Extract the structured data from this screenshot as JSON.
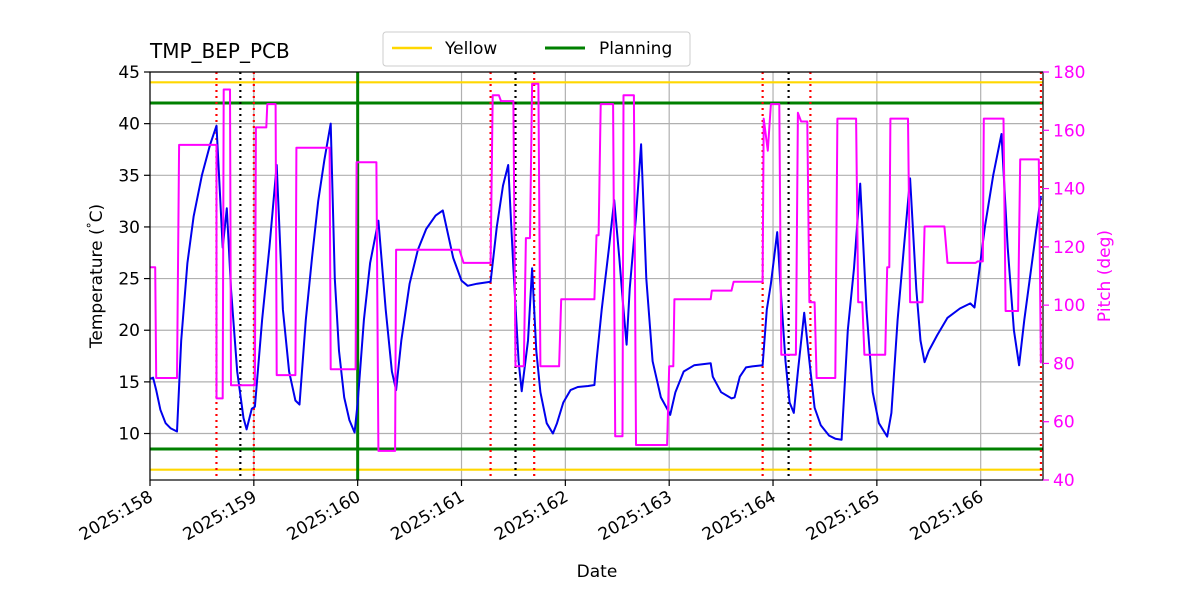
{
  "chart_data": {
    "type": "line",
    "title": "TMP_BEP_PCB",
    "xlabel": "Date",
    "ylabel": "Temperature ($^\\circ$C)",
    "ylabel_display": "Temperature (",
    "ylabel_degree": "°",
    "ylabel_unit": "C)",
    "y2label": "Pitch (deg)",
    "xlim": [
      158.0,
      166.6
    ],
    "ylim": [
      5.5,
      45
    ],
    "y2lim": [
      40,
      180
    ],
    "grid": true,
    "legend_placement": "top-center",
    "x_ticks": [
      {
        "value": 158,
        "label": "2025:158"
      },
      {
        "value": 159,
        "label": "2025:159"
      },
      {
        "value": 160,
        "label": "2025:160"
      },
      {
        "value": 161,
        "label": "2025:161"
      },
      {
        "value": 162,
        "label": "2025:162"
      },
      {
        "value": 163,
        "label": "2025:163"
      },
      {
        "value": 164,
        "label": "2025:164"
      },
      {
        "value": 165,
        "label": "2025:165"
      },
      {
        "value": 166,
        "label": "2025:166"
      }
    ],
    "y_ticks": [
      10,
      15,
      20,
      25,
      30,
      35,
      40,
      45
    ],
    "y2_ticks": [
      40,
      60,
      80,
      100,
      120,
      140,
      160,
      180
    ],
    "limit_lines": [
      {
        "name": "Yellow",
        "y": [
          6.5,
          44
        ],
        "color": "#ffd700"
      },
      {
        "name": "Planning",
        "y": [
          8.5,
          42
        ],
        "color": "#008000"
      }
    ],
    "planning_vline": {
      "x": 160.0,
      "color": "#008000"
    },
    "red_dotted_vlines": [
      158.64,
      159.0,
      161.28,
      161.7,
      163.9,
      164.36,
      166.58
    ],
    "black_dotted_vlines": [
      158.87,
      161.52,
      164.15
    ],
    "series": [
      {
        "name": "",
        "axis": "left",
        "color": "#0000ee",
        "points": [
          [
            158.0,
            15.3
          ],
          [
            158.03,
            15.4
          ],
          [
            158.06,
            14.2
          ],
          [
            158.1,
            12.3
          ],
          [
            158.15,
            11.0
          ],
          [
            158.2,
            10.5
          ],
          [
            158.26,
            10.2
          ],
          [
            158.3,
            19.0
          ],
          [
            158.36,
            26.5
          ],
          [
            158.42,
            31.0
          ],
          [
            158.5,
            35.0
          ],
          [
            158.58,
            38.0
          ],
          [
            158.64,
            39.8
          ],
          [
            158.7,
            28.0
          ],
          [
            158.74,
            31.8
          ],
          [
            158.78,
            24.0
          ],
          [
            158.84,
            16.0
          ],
          [
            158.9,
            11.5
          ],
          [
            158.93,
            10.4
          ],
          [
            158.98,
            12.4
          ],
          [
            159.01,
            12.6
          ],
          [
            159.08,
            21.0
          ],
          [
            159.15,
            28.0
          ],
          [
            159.22,
            36.0
          ],
          [
            159.28,
            22.0
          ],
          [
            159.34,
            16.0
          ],
          [
            159.4,
            13.2
          ],
          [
            159.44,
            12.8
          ],
          [
            159.5,
            21.0
          ],
          [
            159.56,
            27.0
          ],
          [
            159.62,
            32.5
          ],
          [
            159.68,
            36.5
          ],
          [
            159.74,
            40.0
          ],
          [
            159.78,
            25.0
          ],
          [
            159.82,
            18.0
          ],
          [
            159.87,
            13.5
          ],
          [
            159.92,
            11.3
          ],
          [
            159.97,
            10.1
          ],
          [
            160.0,
            13.0
          ],
          [
            160.06,
            21.0
          ],
          [
            160.12,
            26.5
          ],
          [
            160.2,
            30.6
          ],
          [
            160.27,
            22.0
          ],
          [
            160.33,
            16.0
          ],
          [
            160.37,
            14.2
          ],
          [
            160.42,
            19.0
          ],
          [
            160.5,
            24.5
          ],
          [
            160.58,
            27.8
          ],
          [
            160.66,
            29.8
          ],
          [
            160.75,
            31.1
          ],
          [
            160.82,
            31.6
          ],
          [
            160.92,
            27.0
          ],
          [
            161.0,
            24.8
          ],
          [
            161.06,
            24.3
          ],
          [
            161.15,
            24.5
          ],
          [
            161.28,
            24.7
          ],
          [
            161.34,
            30.0
          ],
          [
            161.4,
            34.0
          ],
          [
            161.45,
            36.0
          ],
          [
            161.5,
            26.0
          ],
          [
            161.55,
            17.0
          ],
          [
            161.58,
            14.1
          ],
          [
            161.64,
            19.0
          ],
          [
            161.68,
            26.0
          ],
          [
            161.72,
            18.0
          ],
          [
            161.76,
            14.0
          ],
          [
            161.82,
            11.0
          ],
          [
            161.88,
            10.0
          ],
          [
            161.92,
            11.0
          ],
          [
            161.98,
            13.0
          ],
          [
            162.05,
            14.2
          ],
          [
            162.12,
            14.5
          ],
          [
            162.22,
            14.6
          ],
          [
            162.28,
            14.7
          ],
          [
            162.3,
            17.0
          ],
          [
            162.35,
            22.0
          ],
          [
            162.42,
            28.0
          ],
          [
            162.47,
            32.6
          ],
          [
            162.52,
            27.0
          ],
          [
            162.56,
            22.0
          ],
          [
            162.59,
            18.6
          ],
          [
            162.62,
            24.0
          ],
          [
            162.68,
            31.0
          ],
          [
            162.73,
            38.0
          ],
          [
            162.78,
            25.0
          ],
          [
            162.84,
            17.0
          ],
          [
            162.92,
            13.5
          ],
          [
            162.98,
            12.4
          ],
          [
            163.01,
            11.8
          ],
          [
            163.06,
            14.0
          ],
          [
            163.14,
            16.0
          ],
          [
            163.24,
            16.6
          ],
          [
            163.4,
            16.8
          ],
          [
            163.42,
            15.5
          ],
          [
            163.5,
            14.0
          ],
          [
            163.6,
            13.4
          ],
          [
            163.63,
            13.5
          ],
          [
            163.68,
            15.5
          ],
          [
            163.74,
            16.4
          ],
          [
            163.8,
            16.5
          ],
          [
            163.9,
            16.6
          ],
          [
            163.94,
            22.0
          ],
          [
            163.98,
            24.5
          ],
          [
            164.04,
            29.5
          ],
          [
            164.08,
            23.0
          ],
          [
            164.12,
            17.0
          ],
          [
            164.16,
            13.0
          ],
          [
            164.2,
            12.0
          ],
          [
            164.24,
            16.0
          ],
          [
            164.3,
            21.7
          ],
          [
            164.35,
            17.0
          ],
          [
            164.4,
            12.5
          ],
          [
            164.46,
            10.8
          ],
          [
            164.54,
            9.8
          ],
          [
            164.6,
            9.5
          ],
          [
            164.66,
            9.4
          ],
          [
            164.72,
            20.0
          ],
          [
            164.78,
            26.0
          ],
          [
            164.84,
            34.2
          ],
          [
            164.9,
            22.0
          ],
          [
            164.96,
            14.0
          ],
          [
            165.02,
            11.0
          ],
          [
            165.1,
            9.7
          ],
          [
            165.14,
            12.0
          ],
          [
            165.2,
            21.0
          ],
          [
            165.26,
            28.0
          ],
          [
            165.32,
            34.7
          ],
          [
            165.38,
            24.0
          ],
          [
            165.42,
            19.0
          ],
          [
            165.46,
            16.9
          ],
          [
            165.5,
            18.0
          ],
          [
            165.58,
            19.5
          ],
          [
            165.68,
            21.2
          ],
          [
            165.8,
            22.1
          ],
          [
            165.9,
            22.6
          ],
          [
            165.94,
            22.2
          ],
          [
            165.97,
            24.5
          ],
          [
            166.04,
            30.0
          ],
          [
            166.12,
            35.0
          ],
          [
            166.2,
            39.0
          ],
          [
            166.26,
            28.0
          ],
          [
            166.32,
            20.0
          ],
          [
            166.37,
            16.6
          ],
          [
            166.42,
            21.0
          ],
          [
            166.5,
            27.0
          ],
          [
            166.58,
            33.0
          ]
        ]
      },
      {
        "name": "",
        "axis": "right",
        "color": "#ff00ff",
        "points": [
          [
            158.0,
            113
          ],
          [
            158.05,
            113
          ],
          [
            158.06,
            75
          ],
          [
            158.26,
            75
          ],
          [
            158.28,
            155
          ],
          [
            158.64,
            155
          ],
          [
            158.64,
            68
          ],
          [
            158.7,
            68
          ],
          [
            158.71,
            174
          ],
          [
            158.77,
            174
          ],
          [
            158.78,
            72.5
          ],
          [
            159.01,
            72.5
          ],
          [
            159.02,
            161
          ],
          [
            159.12,
            161
          ],
          [
            159.13,
            169
          ],
          [
            159.21,
            169
          ],
          [
            159.22,
            76
          ],
          [
            159.4,
            76
          ],
          [
            159.41,
            154
          ],
          [
            159.73,
            154
          ],
          [
            159.74,
            78
          ],
          [
            159.98,
            78
          ],
          [
            159.99,
            149
          ],
          [
            160.18,
            149
          ],
          [
            160.2,
            50
          ],
          [
            160.36,
            50
          ],
          [
            160.37,
            119
          ],
          [
            160.98,
            119
          ],
          [
            161.02,
            114.5
          ],
          [
            161.28,
            114.5
          ],
          [
            161.3,
            172
          ],
          [
            161.36,
            172
          ],
          [
            161.38,
            170
          ],
          [
            161.5,
            170
          ],
          [
            161.52,
            79
          ],
          [
            161.6,
            79
          ],
          [
            161.62,
            123
          ],
          [
            161.66,
            123
          ],
          [
            161.68,
            176
          ],
          [
            161.74,
            176
          ],
          [
            161.76,
            79
          ],
          [
            161.94,
            79
          ],
          [
            161.96,
            102
          ],
          [
            162.28,
            102
          ],
          [
            162.3,
            124
          ],
          [
            162.32,
            124
          ],
          [
            162.34,
            169
          ],
          [
            162.46,
            169
          ],
          [
            162.48,
            55
          ],
          [
            162.55,
            55
          ],
          [
            162.56,
            172
          ],
          [
            162.66,
            172
          ],
          [
            162.68,
            52
          ],
          [
            162.98,
            52
          ],
          [
            163.0,
            79
          ],
          [
            163.04,
            79
          ],
          [
            163.05,
            102
          ],
          [
            163.4,
            102
          ],
          [
            163.41,
            105
          ],
          [
            163.6,
            105
          ],
          [
            163.62,
            108
          ],
          [
            163.9,
            108
          ],
          [
            163.91,
            164
          ],
          [
            163.95,
            153
          ],
          [
            163.98,
            169
          ],
          [
            164.06,
            169
          ],
          [
            164.08,
            83
          ],
          [
            164.22,
            83
          ],
          [
            164.24,
            166
          ],
          [
            164.27,
            163
          ],
          [
            164.33,
            163
          ],
          [
            164.35,
            101
          ],
          [
            164.4,
            101
          ],
          [
            164.42,
            75
          ],
          [
            164.6,
            75
          ],
          [
            164.62,
            164
          ],
          [
            164.8,
            164
          ],
          [
            164.82,
            101
          ],
          [
            164.86,
            101
          ],
          [
            164.88,
            83
          ],
          [
            165.08,
            83
          ],
          [
            165.1,
            113
          ],
          [
            165.12,
            113
          ],
          [
            165.13,
            164
          ],
          [
            165.3,
            164
          ],
          [
            165.32,
            101
          ],
          [
            165.44,
            101
          ],
          [
            165.46,
            127
          ],
          [
            165.65,
            127
          ],
          [
            165.68,
            114.5
          ],
          [
            165.95,
            114.5
          ],
          [
            165.97,
            115
          ],
          [
            166.02,
            115
          ],
          [
            166.03,
            164
          ],
          [
            166.22,
            164
          ],
          [
            166.24,
            98
          ],
          [
            166.36,
            98
          ],
          [
            166.38,
            150
          ],
          [
            166.56,
            150
          ],
          [
            166.58,
            80
          ]
        ]
      }
    ]
  }
}
